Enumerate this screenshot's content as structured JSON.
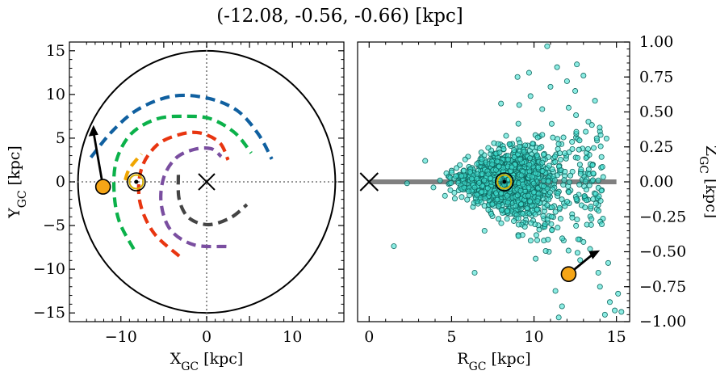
{
  "title": "(-12.08, -0.56, -0.66) [kpc]",
  "chart_data": [
    {
      "type": "scatter",
      "panel": "left",
      "xlabel": "X",
      "xlabel_sub": "GC",
      "xlabel_unit": " [kpc]",
      "ylabel": "Y",
      "ylabel_sub": "GC",
      "ylabel_unit": " [kpc]",
      "xlim": [
        -16,
        16
      ],
      "ylim": [
        -16,
        16
      ],
      "xticks": [
        -10,
        0,
        10
      ],
      "xtick_labels": [
        "−10",
        "0",
        "10"
      ],
      "yticks": [
        -15,
        -10,
        -5,
        0,
        5,
        10,
        15
      ],
      "ytick_labels": [
        "−15",
        "−10",
        "−5",
        "0",
        "5",
        "10",
        "15"
      ],
      "galaxy_boundary_radius": 15,
      "galactic_center": {
        "x": 0,
        "y": 0
      },
      "sun": {
        "x": -8.2,
        "y": 0
      },
      "object": {
        "x": -12.08,
        "y": -0.56
      },
      "velocity_arrow": {
        "x0": -12.08,
        "y0": -0.56,
        "x1": -13.2,
        "y1": 6.5
      },
      "spiral_arms": [
        {
          "color": "#1060a0",
          "points": [
            [
              -13.5,
              2.8
            ],
            [
              -11,
              5.8
            ],
            [
              -8,
              8.3
            ],
            [
              -4,
              9.8
            ],
            [
              0,
              9.6
            ],
            [
              3.5,
              8.2
            ],
            [
              6,
              5.5
            ],
            [
              7.6,
              2.6
            ]
          ]
        },
        {
          "color": "#0bb14a",
          "points": [
            [
              -8.5,
              -7.7
            ],
            [
              -10.2,
              -4.5
            ],
            [
              -10.8,
              -1
            ],
            [
              -10.5,
              2.5
            ],
            [
              -8.8,
              5.5
            ],
            [
              -5.8,
              7.2
            ],
            [
              -2.5,
              7.5
            ],
            [
              0.5,
              7.2
            ],
            [
              3.3,
              5.6
            ],
            [
              5.2,
              3.3
            ]
          ]
        },
        {
          "color": "#f0a500",
          "points": [
            [
              -9.5,
              0.2
            ],
            [
              -9.0,
              1.5
            ],
            [
              -7.6,
              3.2
            ]
          ]
        },
        {
          "color": "#e83510",
          "points": [
            [
              -3.2,
              -8.5
            ],
            [
              -6.2,
              -5.8
            ],
            [
              -7.8,
              -2.2
            ],
            [
              -7.6,
              1.5
            ],
            [
              -5.8,
              4.2
            ],
            [
              -3.2,
              5.4
            ],
            [
              -0.8,
              5.6
            ],
            [
              1.5,
              4.5
            ],
            [
              2.5,
              2.5
            ]
          ]
        },
        {
          "color": "#7a4ea0",
          "points": [
            [
              2.3,
              -7.4
            ],
            [
              -1.5,
              -7.2
            ],
            [
              -4.2,
              -5.5
            ],
            [
              -5.3,
              -2.5
            ],
            [
              -5.0,
              0.5
            ],
            [
              -3.6,
              2.7
            ],
            [
              -1.5,
              3.7
            ],
            [
              0.5,
              3.8
            ],
            [
              1.7,
              2.9
            ]
          ]
        },
        {
          "color": "#444444",
          "points": [
            [
              -3.3,
              0.8
            ],
            [
              -3.2,
              -2.0
            ],
            [
              -2.1,
              -4.1
            ],
            [
              0.2,
              -4.9
            ],
            [
              2.8,
              -4.1
            ],
            [
              4.7,
              -2.6
            ]
          ]
        }
      ]
    },
    {
      "type": "scatter",
      "panel": "right",
      "xlabel": "R",
      "xlabel_sub": "GC",
      "xlabel_unit": " [kpc]",
      "ylabel": "Z",
      "ylabel_sub": "GC",
      "ylabel_unit": " [kpc]",
      "xlim": [
        -0.7,
        15.8
      ],
      "ylim": [
        -1.0,
        1.0
      ],
      "xticks": [
        0,
        5,
        10,
        15
      ],
      "xtick_labels": [
        "0",
        "5",
        "10",
        "15"
      ],
      "yticks": [
        -1.0,
        -0.75,
        -0.5,
        -0.25,
        0.0,
        0.25,
        0.5,
        0.75,
        1.0
      ],
      "ytick_labels": [
        "−1.00",
        "−0.75",
        "−0.50",
        "−0.25",
        "0.00",
        "0.25",
        "0.50",
        "0.75",
        "1.00"
      ],
      "disk_line": {
        "x0": 0,
        "x1": 15,
        "z": 0
      },
      "galactic_center": {
        "r": 0,
        "z": 0
      },
      "sun": {
        "r": 8.2,
        "z": 0
      },
      "object": {
        "r": 12.1,
        "z": -0.66
      },
      "velocity_arrow": {
        "x0": 12.1,
        "y0": -0.66,
        "x1": 14.0,
        "y1": -0.49
      },
      "scatter_color": "#40e0d0",
      "scatter_points": [
        [
          1.5,
          -0.46
        ],
        [
          3.4,
          0.15
        ],
        [
          2.3,
          -0.01
        ],
        [
          10.8,
          0.97
        ],
        [
          12.6,
          0.84
        ],
        [
          13.0,
          0.76
        ],
        [
          12.0,
          0.72
        ],
        [
          11.4,
          0.82
        ],
        [
          9.0,
          0.75
        ],
        [
          9.7,
          0.78
        ],
        [
          13.3,
          0.43
        ],
        [
          14.0,
          0.36
        ],
        [
          14.4,
          0.31
        ],
        [
          13.7,
          0.58
        ],
        [
          12.5,
          0.65
        ],
        [
          8.0,
          0.56
        ],
        [
          9.1,
          0.55
        ],
        [
          11.0,
          0.68
        ],
        [
          12.1,
          0.53
        ],
        [
          10.5,
          0.52
        ],
        [
          13.0,
          -0.43
        ],
        [
          14.5,
          -0.58
        ],
        [
          13.9,
          -0.65
        ],
        [
          14.0,
          -0.75
        ],
        [
          15.1,
          -0.8
        ],
        [
          14.6,
          -0.86
        ],
        [
          14.9,
          -0.92
        ],
        [
          15.3,
          -0.93
        ],
        [
          14.3,
          -0.95
        ],
        [
          11.3,
          -0.78
        ],
        [
          11.7,
          -0.89
        ],
        [
          11.5,
          -0.97
        ],
        [
          12.8,
          -0.56
        ],
        [
          10.6,
          -0.42
        ],
        [
          11.8,
          -0.42
        ],
        [
          13.4,
          -0.48
        ],
        [
          7.0,
          -0.35
        ],
        [
          9.3,
          -0.38
        ],
        [
          10.1,
          -0.55
        ],
        [
          6.4,
          -0.65
        ],
        [
          4.6,
          -0.1
        ],
        [
          5.0,
          0.08
        ],
        [
          5.5,
          0.12
        ],
        [
          4.3,
          0.01
        ],
        [
          3.9,
          -0.04
        ],
        [
          5.2,
          -0.12
        ],
        [
          6.0,
          0.18
        ],
        [
          6.3,
          -0.18
        ],
        [
          4.8,
          0.04
        ],
        [
          5.7,
          0.0
        ]
      ]
    }
  ]
}
